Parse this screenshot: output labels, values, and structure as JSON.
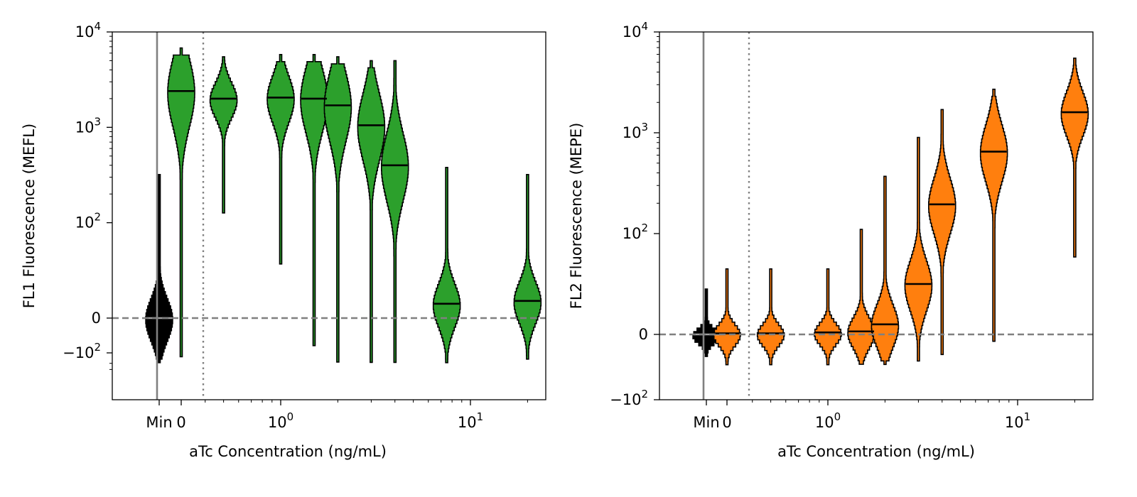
{
  "chart_data": [
    {
      "type": "violin",
      "ylabel": "FL1 Fluorescence (MEFL)",
      "xlabel": "aTc Concentration (ng/mL)",
      "y_scale": "symlog",
      "ylim": [
        -300,
        10000
      ],
      "y_ticks": [
        {
          "value": 10000,
          "base": "10",
          "exp": "4",
          "plain": ""
        },
        {
          "value": 1000,
          "base": "10",
          "exp": "3",
          "plain": ""
        },
        {
          "value": 100,
          "base": "10",
          "exp": "2",
          "plain": ""
        },
        {
          "value": 0,
          "base": "",
          "exp": "",
          "plain": "0"
        },
        {
          "value": -100,
          "base": "−10",
          "exp": "2",
          "plain": ""
        }
      ],
      "x_scale": "log",
      "x_ticks": [
        {
          "label": "Min",
          "base": "",
          "exp": ""
        },
        {
          "label": "0",
          "base": "",
          "exp": ""
        },
        {
          "label": "",
          "base": "10",
          "exp": "0"
        },
        {
          "label": "",
          "base": "10",
          "exp": "1"
        }
      ],
      "zero_line": true,
      "colors": {
        "min": "#000000",
        "samples": "#2ca02c"
      },
      "series": [
        {
          "x": "Min",
          "median": 0,
          "min": -180,
          "max": 320,
          "color": "#000000"
        },
        {
          "x": 0,
          "median": 2400,
          "min": -110,
          "max": 6800,
          "color": "#2ca02c"
        },
        {
          "x": 0.5,
          "median": 2000,
          "min": 130,
          "max": 5500,
          "color": "#2ca02c"
        },
        {
          "x": 1.0,
          "median": 2050,
          "min": 60,
          "max": 5800,
          "color": "#2ca02c"
        },
        {
          "x": 1.5,
          "median": 2000,
          "min": -70,
          "max": 5800,
          "color": "#2ca02c"
        },
        {
          "x": 2.0,
          "median": 1700,
          "min": -150,
          "max": 5500,
          "color": "#2ca02c"
        },
        {
          "x": 3.0,
          "median": 1050,
          "min": -150,
          "max": 5000,
          "color": "#2ca02c"
        },
        {
          "x": 4.0,
          "median": 400,
          "min": -180,
          "max": 5000,
          "color": "#2ca02c"
        },
        {
          "x": 7.5,
          "median": 15,
          "min": -160,
          "max": 380,
          "color": "#2ca02c"
        },
        {
          "x": 20.0,
          "median": 18,
          "min": -150,
          "max": 320,
          "color": "#2ca02c"
        }
      ]
    },
    {
      "type": "violin",
      "ylabel": "FL2 Fluorescence (MEPE)",
      "xlabel": "aTc Concentration (ng/mL)",
      "y_scale": "symlog",
      "ylim": [
        -100,
        10000
      ],
      "y_ticks": [
        {
          "value": 10000,
          "base": "10",
          "exp": "4",
          "plain": ""
        },
        {
          "value": 1000,
          "base": "10",
          "exp": "3",
          "plain": ""
        },
        {
          "value": 100,
          "base": "10",
          "exp": "2",
          "plain": ""
        },
        {
          "value": 0,
          "base": "",
          "exp": "",
          "plain": "0"
        },
        {
          "value": -100,
          "base": "−10",
          "exp": "2",
          "plain": ""
        }
      ],
      "x_scale": "log",
      "x_ticks": [
        {
          "label": "Min",
          "base": "",
          "exp": ""
        },
        {
          "label": "0",
          "base": "",
          "exp": ""
        },
        {
          "label": "",
          "base": "10",
          "exp": "0"
        },
        {
          "label": "",
          "base": "10",
          "exp": "1"
        }
      ],
      "zero_line": true,
      "colors": {
        "min": "#000000",
        "samples": "#ff7f0e"
      },
      "series": [
        {
          "x": "Min",
          "median": 0,
          "min": -30,
          "max": 45,
          "color": "#000000"
        },
        {
          "x": 0,
          "median": 1,
          "min": -45,
          "max": 65,
          "color": "#ff7f0e"
        },
        {
          "x": 0.5,
          "median": 1,
          "min": -45,
          "max": 65,
          "color": "#ff7f0e"
        },
        {
          "x": 1.0,
          "median": 2,
          "min": -45,
          "max": 65,
          "color": "#ff7f0e"
        },
        {
          "x": 1.5,
          "median": 3,
          "min": -45,
          "max": 110,
          "color": "#ff7f0e"
        },
        {
          "x": 2.0,
          "median": 10,
          "min": -45,
          "max": 370,
          "color": "#ff7f0e"
        },
        {
          "x": 3.0,
          "median": 50,
          "min": -40,
          "max": 900,
          "color": "#ff7f0e"
        },
        {
          "x": 4.0,
          "median": 195,
          "min": -30,
          "max": 1700,
          "color": "#ff7f0e"
        },
        {
          "x": 7.5,
          "median": 650,
          "min": -10,
          "max": 2700,
          "color": "#ff7f0e"
        },
        {
          "x": 20.0,
          "median": 1600,
          "min": 80,
          "max": 5500,
          "color": "#ff7f0e"
        }
      ]
    }
  ]
}
